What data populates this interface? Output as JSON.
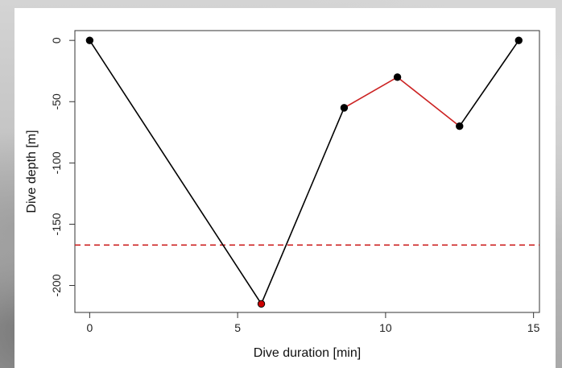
{
  "chart_data": {
    "type": "line",
    "title": "",
    "xlabel": "Dive duration [min]",
    "ylabel": "Dive depth [m]",
    "xlim": [
      -0.5,
      15.2
    ],
    "ylim": [
      -222,
      8
    ],
    "x_ticks": [
      0,
      5,
      10,
      15
    ],
    "y_ticks": [
      0,
      -50,
      -100,
      -150,
      -200
    ],
    "x_tick_labels": [
      "0",
      "5",
      "10",
      "15"
    ],
    "y_tick_labels": [
      "0",
      "-50",
      "-100",
      "-150",
      "-200"
    ],
    "grid": false,
    "points": [
      {
        "x": 0,
        "y": 0,
        "color": "#000000"
      },
      {
        "x": 5.8,
        "y": -215,
        "color": "#cc0000"
      },
      {
        "x": 8.6,
        "y": -55,
        "color": "#000000"
      },
      {
        "x": 10.4,
        "y": -30,
        "color": "#000000"
      },
      {
        "x": 12.5,
        "y": -70,
        "color": "#000000"
      },
      {
        "x": 14.5,
        "y": 0,
        "color": "#000000"
      }
    ],
    "segment_colors": [
      "#000000",
      "#000000",
      "#cc2222",
      "#cc2222",
      "#000000"
    ],
    "reference_line": {
      "y": -167,
      "color": "#cc2222",
      "style": "dashed"
    }
  }
}
